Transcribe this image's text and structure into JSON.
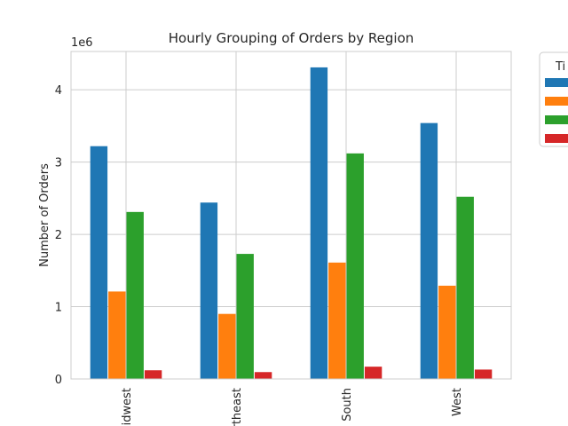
{
  "chart_data": {
    "type": "bar",
    "title": "Hourly Grouping of Orders by Region",
    "xlabel": "",
    "ylabel": "Number of Orders",
    "y_offset_label": "1e6",
    "categories": [
      "Midwest",
      "Northeast",
      "South",
      "West"
    ],
    "series": [
      {
        "values": [
          3220000,
          2440000,
          4310000,
          3540000
        ],
        "color": "#1f77b4"
      },
      {
        "values": [
          1210000,
          900000,
          1610000,
          1290000
        ],
        "color": "#ff7f0e"
      },
      {
        "values": [
          2310000,
          1730000,
          3120000,
          2520000
        ],
        "color": "#2ca02c"
      },
      {
        "values": [
          120000,
          95000,
          170000,
          130000
        ],
        "color": "#d62728"
      }
    ],
    "ylim": [
      0,
      4530000
    ],
    "yticks": [
      0,
      1,
      2,
      3,
      4
    ],
    "grid": true,
    "legend": {
      "title": "Ti",
      "placement": "outside-right"
    }
  }
}
